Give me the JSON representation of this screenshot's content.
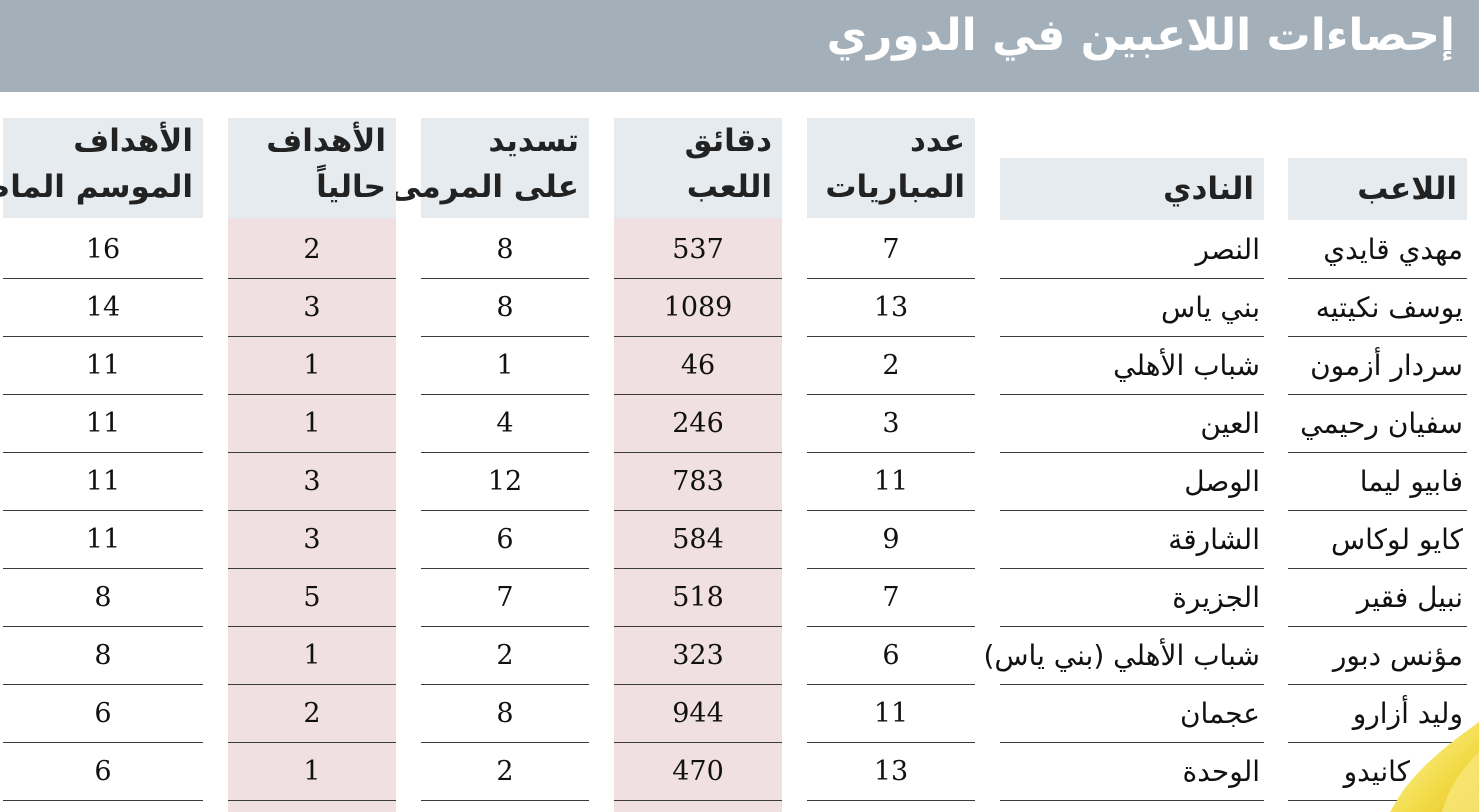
{
  "title": "إحصاءات اللاعبين في الدوري",
  "headers": {
    "player": "اللاعب",
    "club": "النادي",
    "matches": [
      "عدد",
      "المباريات"
    ],
    "minutes": [
      "دقائق",
      "اللعب"
    ],
    "shots": [
      "تسديد",
      "على المرمى"
    ],
    "goals_current": [
      "الأهداف",
      "حالياً"
    ],
    "goals_last": [
      "الأهداف",
      "الموسم الماضي"
    ]
  },
  "rows": [
    {
      "player": "مهدي قايدي",
      "club": "النصر",
      "matches": "7",
      "minutes": "537",
      "shots": "8",
      "goals_current": "2",
      "goals_last": "16"
    },
    {
      "player": "يوسف نكيتيه",
      "club": "بني ياس",
      "matches": "13",
      "minutes": "1089",
      "shots": "8",
      "goals_current": "3",
      "goals_last": "14"
    },
    {
      "player": "سردار أزمون",
      "club": "شباب الأهلي",
      "matches": "2",
      "minutes": "46",
      "shots": "1",
      "goals_current": "1",
      "goals_last": "11"
    },
    {
      "player": "سفيان رحيمي",
      "club": "العين",
      "matches": "3",
      "minutes": "246",
      "shots": "4",
      "goals_current": "1",
      "goals_last": "11"
    },
    {
      "player": "فابيو ليما",
      "club": "الوصل",
      "matches": "11",
      "minutes": "783",
      "shots": "12",
      "goals_current": "3",
      "goals_last": "11"
    },
    {
      "player": "كايو لوكاس",
      "club": "الشارقة",
      "matches": "9",
      "minutes": "584",
      "shots": "6",
      "goals_current": "3",
      "goals_last": "11"
    },
    {
      "player": "نبيل فقير",
      "club": "الجزيرة",
      "matches": "7",
      "minutes": "518",
      "shots": "7",
      "goals_current": "5",
      "goals_last": "8"
    },
    {
      "player": "مؤنس دبور",
      "club": "شباب الأهلي (بني ياس)",
      "matches": "6",
      "minutes": "323",
      "shots": "2",
      "goals_current": "1",
      "goals_last": "8"
    },
    {
      "player": "وليد أزارو",
      "club": "عجمان",
      "matches": "11",
      "minutes": "944",
      "shots": "8",
      "goals_current": "2",
      "goals_last": "6"
    },
    {
      "player": "كايو كانيدو",
      "club": "الوحدة",
      "matches": "13",
      "minutes": "470",
      "shots": "2",
      "goals_current": "1",
      "goals_last": "6"
    }
  ]
}
